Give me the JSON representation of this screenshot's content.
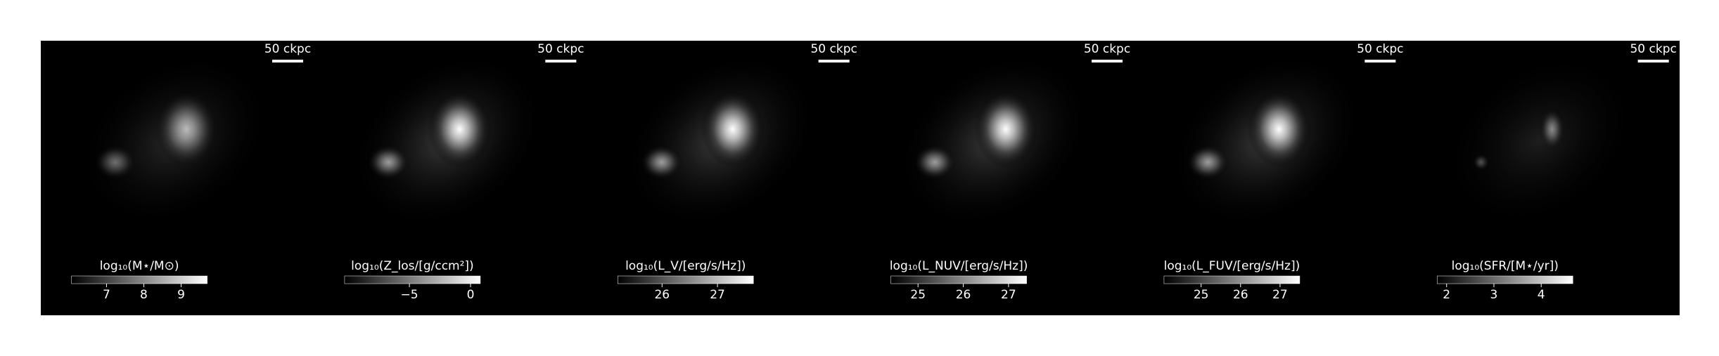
{
  "panels": [
    {
      "scale_label": "50 ckpc",
      "colorbar": {
        "label": "log₁₀(M⋆/M⊙)",
        "clim": [
          6.06,
          9.7
        ],
        "ticks": [
          7,
          8,
          9
        ]
      }
    },
    {
      "scale_label": "50 ckpc",
      "colorbar": {
        "label": "log₁₀(Z_los/[g/ccm²])",
        "clim": [
          -10.3,
          0.8
        ],
        "ticks": [
          {
            "value": -5,
            "label": "−5"
          },
          0
        ]
      }
    },
    {
      "scale_label": "50 ckpc",
      "colorbar": {
        "label": "log₁₀(L_V/[erg/s/Hz])",
        "clim": [
          25.2,
          27.65
        ],
        "ticks": [
          26,
          27
        ]
      }
    },
    {
      "scale_label": "50 ckpc",
      "colorbar": {
        "label": "log₁₀(L_NUV/[erg/s/Hz])",
        "clim": [
          24.4,
          27.4
        ],
        "ticks": [
          25,
          26,
          27
        ]
      }
    },
    {
      "scale_label": "50 ckpc",
      "colorbar": {
        "label": "log₁₀(L_FUV/[erg/s/Hz])",
        "clim": [
          24.06,
          27.5
        ],
        "ticks": [
          25,
          26,
          27
        ]
      }
    },
    {
      "scale_label": "50 ckpc",
      "colorbar": {
        "label": "log₁₀(SFR/[M⋆/yr])",
        "clim": [
          1.8,
          4.67
        ],
        "ticks": [
          2,
          3,
          4
        ]
      }
    }
  ]
}
